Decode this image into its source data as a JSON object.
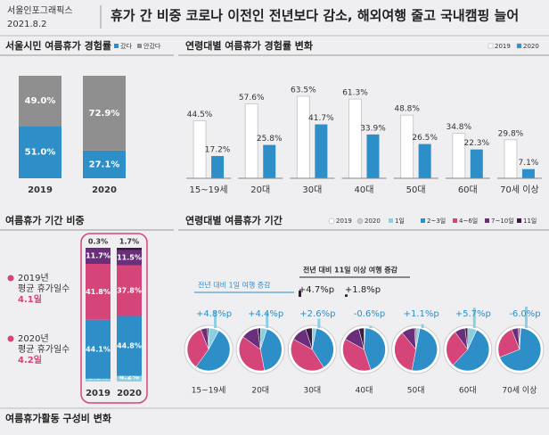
{
  "header": {
    "brand": "서울인포그래픽스",
    "date": "2021.8.2",
    "title": "휴가 간 비중 코로나 이전인 전년보다 감소, 해외여행 줄고 국내캠핑 늘어"
  },
  "footer": {
    "title": "여름휴가활동 구성비 변화"
  },
  "chart_data": [
    {
      "type": "stacked_bar",
      "title": "서울시민 여름휴가 경험률",
      "categories": [
        "2019",
        "2020"
      ],
      "series": [
        {
          "name": "갔다",
          "color": "#2e8fc8",
          "values": [
            51.0,
            27.1
          ],
          "value_labels": [
            "51.0%",
            "27.1%"
          ]
        },
        {
          "name": "안갔다",
          "color": "#8f8f8f",
          "values": [
            49.0,
            72.9
          ],
          "value_labels": [
            "49.0%",
            "72.9%"
          ]
        }
      ]
    },
    {
      "type": "bar",
      "title": "연령대별 여름휴가 경험률 변화",
      "categories": [
        "15~19세",
        "20대",
        "30대",
        "40대",
        "50대",
        "60대",
        "70세 이상"
      ],
      "series": [
        {
          "name": "2019",
          "color": "#ffffff",
          "values": [
            44.5,
            57.6,
            63.5,
            61.3,
            48.8,
            34.8,
            29.8
          ],
          "value_labels": [
            "44.5%",
            "57.6%",
            "63.5%",
            "61.3%",
            "48.8%",
            "34.8%",
            "29.8%"
          ]
        },
        {
          "name": "2020",
          "color": "#2e8fc8",
          "values": [
            17.2,
            25.8,
            41.7,
            33.9,
            26.5,
            22.3,
            7.1
          ],
          "value_labels": [
            "17.2%",
            "25.8%",
            "41.7%",
            "33.9%",
            "26.5%",
            "22.3%",
            "7.1%"
          ]
        }
      ]
    },
    {
      "type": "stacked_bar",
      "title": "여름휴가 기간 비중",
      "categories": [
        "2019",
        "2020"
      ],
      "notes": [
        [
          "2019년",
          "평균 휴가일수",
          "4.1일"
        ],
        [
          "2020년",
          "평균 휴가일수",
          "4.2일"
        ]
      ],
      "series": [
        {
          "name": "1일",
          "color": "#8ccfe0",
          "values": [
            2.1,
            4.2
          ],
          "value_labels": [
            "2.1%",
            "4.2%"
          ]
        },
        {
          "name": "2~3일",
          "color": "#2e8fc8",
          "values": [
            44.1,
            44.8
          ],
          "value_labels": [
            "44.1%",
            "44.8%"
          ]
        },
        {
          "name": "4~6일",
          "color": "#d5457a",
          "values": [
            41.8,
            37.8
          ],
          "value_labels": [
            "41.8%",
            "37.8%"
          ]
        },
        {
          "name": "7~10일",
          "color": "#6a2e7a",
          "values": [
            11.7,
            11.5
          ],
          "value_labels": [
            "11.7%",
            "11.5%"
          ]
        },
        {
          "name": "11일",
          "color": "#3b1a3e",
          "values": [
            0.3,
            1.7
          ],
          "value_labels": [
            "0.3%",
            "1.7%"
          ]
        }
      ]
    },
    {
      "type": "pie",
      "title": "연령대별 여름휴가 기간",
      "ring_labels": [
        "2019",
        "2020"
      ],
      "categories": [
        "15~19세",
        "20대",
        "30대",
        "40대",
        "50대",
        "60대",
        "70세 이상"
      ],
      "series": [
        {
          "name": "1일",
          "color": "#8ccfe0",
          "values": [
            8,
            5,
            3,
            1,
            3,
            7,
            1
          ]
        },
        {
          "name": "2~3일",
          "color": "#2e8fc8",
          "values": [
            52,
            42,
            38,
            44,
            50,
            55,
            68
          ]
        },
        {
          "name": "4~6일",
          "color": "#d5457a",
          "values": [
            34,
            38,
            42,
            38,
            36,
            28,
            25
          ]
        },
        {
          "name": "7~10일",
          "color": "#6a2e7a",
          "values": [
            5,
            13,
            12,
            13,
            10,
            8,
            5
          ]
        },
        {
          "name": "11일",
          "color": "#3b1a3e",
          "values": [
            1,
            2,
            5,
            4,
            1,
            2,
            1
          ]
        }
      ],
      "one_day_change": {
        "title": "전년 대비 1일 여행 증감",
        "values": [
          4.8,
          4.4,
          2.6,
          -0.6,
          1.1,
          5.7,
          -6.0
        ],
        "value_labels": [
          "+4.8%p",
          "+4.4%p",
          "+2.6%p",
          "-0.6%p",
          "+1.1%p",
          "+5.7%p",
          "-6.0%p"
        ]
      },
      "long_trip_change": {
        "title": "전년 대비 11일 이상 여행 증감",
        "categories": [
          "30대",
          "40대"
        ],
        "values": [
          4.7,
          1.8
        ],
        "value_labels": [
          "+4.7%p",
          "+1.8%p"
        ]
      }
    }
  ]
}
